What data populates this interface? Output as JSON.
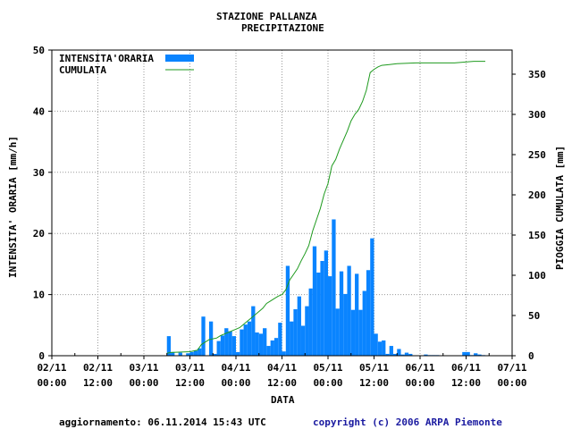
{
  "chart_data": {
    "type": "bar",
    "title": "STAZIONE PALLANZA",
    "subtitle": "PRECIPITAZIONE",
    "xlabel": "DATA",
    "ylabel": "INTENSITA' ORARIA [mm/h]",
    "ylabel_right": "PIOGGIA CUMULATA [mm]",
    "ylim": [
      0,
      50
    ],
    "ylim_right": [
      0,
      380
    ],
    "yticks": [
      "0",
      "10",
      "20",
      "30",
      "40",
      "50"
    ],
    "yticks_right": [
      "0",
      "50",
      "100",
      "150",
      "200",
      "250",
      "300",
      "350"
    ],
    "xticks": [
      {
        "date": "02/11",
        "time": "00:00"
      },
      {
        "date": "02/11",
        "time": "12:00"
      },
      {
        "date": "03/11",
        "time": "00:00"
      },
      {
        "date": "03/11",
        "time": "12:00"
      },
      {
        "date": "04/11",
        "time": "00:00"
      },
      {
        "date": "04/11",
        "time": "12:00"
      },
      {
        "date": "05/11",
        "time": "00:00"
      },
      {
        "date": "05/11",
        "time": "12:00"
      },
      {
        "date": "06/11",
        "time": "00:00"
      },
      {
        "date": "06/11",
        "time": "12:00"
      },
      {
        "date": "07/11",
        "time": "00:00"
      }
    ],
    "x_unit": "hours since 02/11 00:00",
    "grid": true,
    "legend_position": "top-left",
    "series": [
      {
        "name": "INTENSITA'ORARIA",
        "type": "bar",
        "axis": "left",
        "color": "#0a84ff",
        "x": [
          30,
          31,
          33,
          35,
          36,
          37,
          38,
          39,
          41,
          42,
          43,
          44,
          45,
          46,
          47,
          48,
          49,
          50,
          51,
          52,
          53,
          54,
          55,
          56,
          57,
          58,
          59,
          60,
          61,
          62,
          63,
          64,
          65,
          66,
          67,
          68,
          69,
          70,
          71,
          72,
          73,
          74,
          75,
          76,
          77,
          78,
          79,
          80,
          81,
          82,
          83,
          84,
          85,
          86,
          87,
          88,
          89,
          90,
          91,
          92,
          93,
          97,
          98,
          99,
          100,
          107,
          108,
          109,
          110,
          111,
          112
        ],
        "values": [
          3.2,
          0.6,
          0.5,
          0.4,
          0.6,
          0.8,
          1.2,
          6.4,
          5.6,
          0.3,
          2.4,
          3.3,
          4.5,
          4.0,
          3.2,
          0.6,
          4.3,
          5.1,
          5.6,
          8.1,
          3.8,
          3.6,
          4.5,
          1.6,
          2.5,
          2.9,
          5.4,
          0.7,
          14.7,
          5.6,
          7.6,
          9.7,
          4.9,
          8.1,
          11.0,
          17.9,
          13.6,
          15.5,
          17.2,
          13.0,
          22.3,
          7.7,
          13.8,
          10.1,
          14.7,
          7.5,
          13.4,
          7.5,
          10.6,
          14.0,
          19.2,
          3.6,
          2.3,
          2.5,
          0.3,
          1.6,
          0.3,
          1.1,
          0.2,
          0.5,
          0.3,
          0.2,
          0.1,
          0.1,
          0.1,
          0.6,
          0.6,
          0.1,
          0.4,
          0.2,
          0.1
        ]
      },
      {
        "name": "CUMULATA",
        "type": "line",
        "axis": "right",
        "color": "#1e9a1e",
        "x": [
          30,
          31,
          36,
          37,
          38,
          39,
          40,
          41,
          43,
          44,
          45,
          46,
          47,
          48,
          49,
          50,
          51,
          52,
          53,
          54,
          55,
          56,
          57,
          58,
          59,
          60,
          61,
          62,
          63,
          64,
          65,
          66,
          67,
          68,
          69,
          70,
          71,
          72,
          73,
          74,
          75,
          76,
          77,
          78,
          79,
          80,
          81,
          82,
          83,
          84,
          85,
          86,
          88,
          90,
          95,
          100,
          105,
          110,
          113
        ],
        "values": [
          3,
          4,
          5,
          6,
          7,
          14,
          17,
          20,
          22,
          25,
          27,
          29,
          31,
          33,
          35,
          39,
          43,
          47,
          51,
          55,
          59,
          65,
          68,
          71,
          74,
          76,
          82,
          94,
          101,
          108,
          118,
          127,
          137,
          155,
          169,
          183,
          201,
          214,
          236,
          244,
          257,
          268,
          279,
          292,
          300,
          306,
          316,
          330,
          352,
          356,
          359,
          361,
          362,
          363,
          364,
          364,
          364,
          366,
          366
        ]
      }
    ]
  },
  "footer": {
    "update": "aggiornamento: 06.11.2014 15:43 UTC",
    "copyright": "copyright (c) 2006 ARPA Piemonte"
  },
  "colors": {
    "bar": "#0a84ff",
    "line": "#1e9a1e",
    "copyright": "#1a1aa0"
  }
}
